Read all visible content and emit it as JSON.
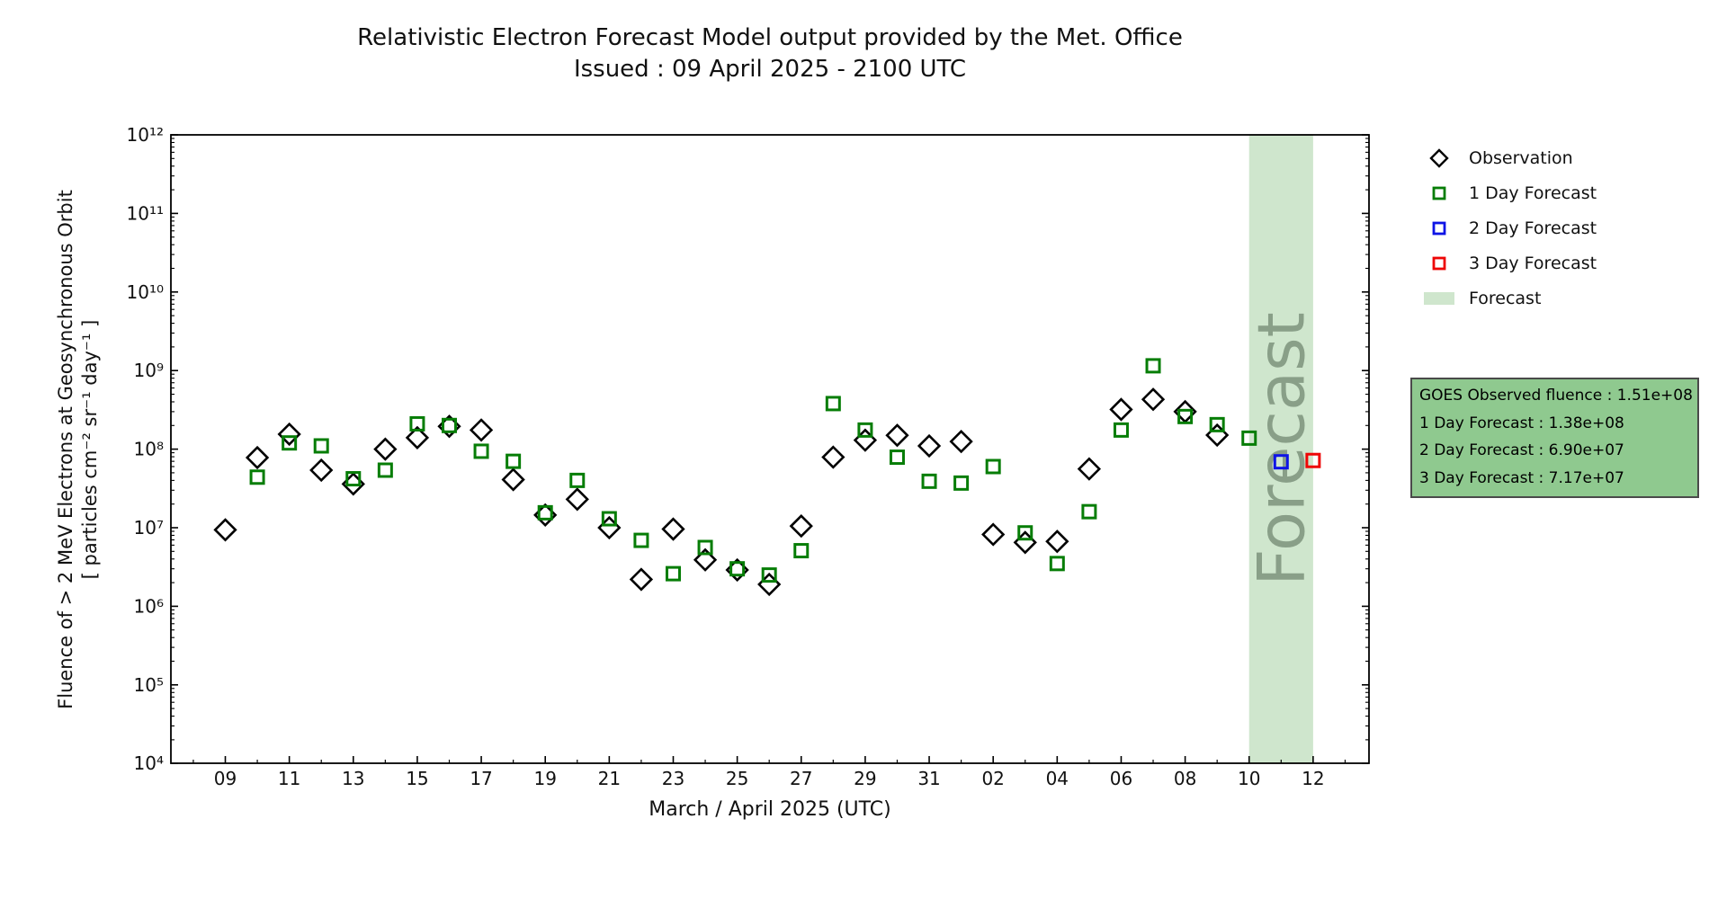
{
  "title": "Relativistic Electron Forecast Model output provided by the Met. Office",
  "subtitle": "Issued : 09 April 2025 - 2100 UTC",
  "axes": {
    "xlabel": "March / April 2025 (UTC)",
    "ylabel_line1": "Fluence of > 2 MeV Electrons at Geosynchronous Orbit",
    "ylabel_line2": "[ particles cm⁻² sr⁻¹ day⁻¹ ]",
    "x_major_ticks": [
      {
        "t": 9,
        "label": "09"
      },
      {
        "t": 11,
        "label": "11"
      },
      {
        "t": 13,
        "label": "13"
      },
      {
        "t": 15,
        "label": "15"
      },
      {
        "t": 17,
        "label": "17"
      },
      {
        "t": 19,
        "label": "19"
      },
      {
        "t": 21,
        "label": "21"
      },
      {
        "t": 23,
        "label": "23"
      },
      {
        "t": 25,
        "label": "25"
      },
      {
        "t": 27,
        "label": "27"
      },
      {
        "t": 29,
        "label": "29"
      },
      {
        "t": 31,
        "label": "31"
      },
      {
        "t": 33,
        "label": "02"
      },
      {
        "t": 35,
        "label": "04"
      },
      {
        "t": 37,
        "label": "06"
      },
      {
        "t": 39,
        "label": "08"
      },
      {
        "t": 41,
        "label": "10"
      },
      {
        "t": 43,
        "label": "12"
      }
    ],
    "y_ticks": [
      {
        "exp": 12,
        "label": "10¹²"
      },
      {
        "exp": 11,
        "label": "10¹¹"
      },
      {
        "exp": 10,
        "label": "10¹⁰"
      },
      {
        "exp": 9,
        "label": "10⁹"
      },
      {
        "exp": 8,
        "label": "10⁸"
      },
      {
        "exp": 7,
        "label": "10⁷"
      },
      {
        "exp": 6,
        "label": "10⁶"
      },
      {
        "exp": 5,
        "label": "10⁵"
      },
      {
        "exp": 4,
        "label": "10⁴"
      }
    ]
  },
  "legend": [
    {
      "label": "Observation",
      "marker": "diamond",
      "color": "#000000"
    },
    {
      "label": "1 Day Forecast",
      "marker": "square",
      "color": "#067d06"
    },
    {
      "label": "2 Day Forecast",
      "marker": "square",
      "color": "#0e14e6"
    },
    {
      "label": "3 Day Forecast",
      "marker": "square",
      "color": "#ee0505"
    },
    {
      "label": "Forecast",
      "marker": "patch",
      "color": "#cfe6cd"
    }
  ],
  "info_box": {
    "bg_color": "#8fc98f",
    "lines": [
      "GOES Observed fluence : 1.51e+08",
      "1 Day Forecast : 1.38e+08",
      "2 Day Forecast : 6.90e+07",
      "3 Day Forecast : 7.17e+07"
    ]
  },
  "chart_data": {
    "type": "scatter",
    "title": "Relativistic Electron Forecast Model output provided by the Met. Office",
    "xlabel": "March / April 2025 (UTC)",
    "ylabel": "Fluence of > 2 MeV Electrons at Geosynchronous Orbit [ particles cm-2 sr-1 day-1 ]",
    "y_scale": "log",
    "ylim": [
      10000.0,
      1000000000000.0
    ],
    "x_range_days": [
      "Mar 07",
      "Apr 14"
    ],
    "grid": false,
    "legend_position": "upper right, outside axes",
    "forecast_band": {
      "start": "Apr 10",
      "end": "Apr 12",
      "t_start": 41,
      "t_end": 43,
      "color": "#cfe6cd",
      "watermark": "Forecast"
    },
    "series": [
      {
        "name": "Observation",
        "marker": "diamond",
        "color": "#000000",
        "points": [
          {
            "d": "Mar 09",
            "t": 9,
            "v": 9400000.0
          },
          {
            "d": "Mar 10",
            "t": 10,
            "v": 78000000.0
          },
          {
            "d": "Mar 11",
            "t": 11,
            "v": 155000000.0
          },
          {
            "d": "Mar 12",
            "t": 12,
            "v": 54000000.0
          },
          {
            "d": "Mar 13",
            "t": 13,
            "v": 36000000.0
          },
          {
            "d": "Mar 14",
            "t": 14,
            "v": 100000000.0
          },
          {
            "d": "Mar 15",
            "t": 15,
            "v": 140000000.0
          },
          {
            "d": "Mar 16",
            "t": 16,
            "v": 195000000.0
          },
          {
            "d": "Mar 17",
            "t": 17,
            "v": 175000000.0
          },
          {
            "d": "Mar 18",
            "t": 18,
            "v": 41000000.0
          },
          {
            "d": "Mar 19",
            "t": 19,
            "v": 14500000.0
          },
          {
            "d": "Mar 20",
            "t": 20,
            "v": 23000000.0
          },
          {
            "d": "Mar 21",
            "t": 21,
            "v": 10000000.0
          },
          {
            "d": "Mar 22",
            "t": 22,
            "v": 2200000.0
          },
          {
            "d": "Mar 23",
            "t": 23,
            "v": 9600000.0
          },
          {
            "d": "Mar 24",
            "t": 24,
            "v": 3900000.0
          },
          {
            "d": "Mar 25",
            "t": 25,
            "v": 2900000.0
          },
          {
            "d": "Mar 26",
            "t": 26,
            "v": 1900000.0
          },
          {
            "d": "Mar 27",
            "t": 27,
            "v": 10500000.0
          },
          {
            "d": "Mar 28",
            "t": 28,
            "v": 79000000.0
          },
          {
            "d": "Mar 29",
            "t": 29,
            "v": 130000000.0
          },
          {
            "d": "Mar 30",
            "t": 30,
            "v": 150000000.0
          },
          {
            "d": "Mar 31",
            "t": 31,
            "v": 110000000.0
          },
          {
            "d": "Apr 01",
            "t": 32,
            "v": 125000000.0
          },
          {
            "d": "Apr 02",
            "t": 33,
            "v": 8200000.0
          },
          {
            "d": "Apr 03",
            "t": 34,
            "v": 6500000.0
          },
          {
            "d": "Apr 04",
            "t": 35,
            "v": 6700000.0
          },
          {
            "d": "Apr 05",
            "t": 36,
            "v": 56000000.0
          },
          {
            "d": "Apr 06",
            "t": 37,
            "v": 320000000.0
          },
          {
            "d": "Apr 07",
            "t": 38,
            "v": 430000000.0
          },
          {
            "d": "Apr 08",
            "t": 39,
            "v": 300000000.0
          },
          {
            "d": "Apr 09",
            "t": 40,
            "v": 151000000.0
          }
        ]
      },
      {
        "name": "1 Day Forecast",
        "marker": "square",
        "color": "#067d06",
        "points": [
          {
            "d": "Mar 10",
            "t": 10,
            "v": 44000000.0
          },
          {
            "d": "Mar 11",
            "t": 11,
            "v": 120000000.0
          },
          {
            "d": "Mar 12",
            "t": 12,
            "v": 110000000.0
          },
          {
            "d": "Mar 13",
            "t": 13,
            "v": 42000000.0
          },
          {
            "d": "Mar 14",
            "t": 14,
            "v": 54000000.0
          },
          {
            "d": "Mar 15",
            "t": 15,
            "v": 210000000.0
          },
          {
            "d": "Mar 16",
            "t": 16,
            "v": 200000000.0
          },
          {
            "d": "Mar 17",
            "t": 17,
            "v": 94000000.0
          },
          {
            "d": "Mar 18",
            "t": 18,
            "v": 70000000.0
          },
          {
            "d": "Mar 19",
            "t": 19,
            "v": 15500000.0
          },
          {
            "d": "Mar 20",
            "t": 20,
            "v": 40000000.0
          },
          {
            "d": "Mar 21",
            "t": 21,
            "v": 13000000.0
          },
          {
            "d": "Mar 22",
            "t": 22,
            "v": 6900000.0
          },
          {
            "d": "Mar 23",
            "t": 23,
            "v": 2600000.0
          },
          {
            "d": "Mar 24",
            "t": 24,
            "v": 5600000.0
          },
          {
            "d": "Mar 25",
            "t": 25,
            "v": 3000000.0
          },
          {
            "d": "Mar 26",
            "t": 26,
            "v": 2500000.0
          },
          {
            "d": "Mar 27",
            "t": 27,
            "v": 5100000.0
          },
          {
            "d": "Mar 28",
            "t": 28,
            "v": 380000000.0
          },
          {
            "d": "Mar 29",
            "t": 29,
            "v": 175000000.0
          },
          {
            "d": "Mar 30",
            "t": 30,
            "v": 79000000.0
          },
          {
            "d": "Mar 31",
            "t": 31,
            "v": 39000000.0
          },
          {
            "d": "Apr 01",
            "t": 32,
            "v": 37000000.0
          },
          {
            "d": "Apr 02",
            "t": 33,
            "v": 60000000.0
          },
          {
            "d": "Apr 03",
            "t": 34,
            "v": 8600000.0
          },
          {
            "d": "Apr 04",
            "t": 35,
            "v": 3500000.0
          },
          {
            "d": "Apr 05",
            "t": 36,
            "v": 16000000.0
          },
          {
            "d": "Apr 06",
            "t": 37,
            "v": 175000000.0
          },
          {
            "d": "Apr 07",
            "t": 38,
            "v": 1150000000.0
          },
          {
            "d": "Apr 08",
            "t": 39,
            "v": 260000000.0
          },
          {
            "d": "Apr 09",
            "t": 40,
            "v": 205000000.0
          },
          {
            "d": "Apr 10",
            "t": 41,
            "v": 138000000.0
          }
        ]
      },
      {
        "name": "2 Day Forecast",
        "marker": "square",
        "color": "#0e14e6",
        "points": [
          {
            "d": "Apr 11",
            "t": 42,
            "v": 69000000.0
          }
        ]
      },
      {
        "name": "3 Day Forecast",
        "marker": "square",
        "color": "#ee0505",
        "points": [
          {
            "d": "Apr 12",
            "t": 43,
            "v": 71700000.0
          }
        ]
      }
    ]
  }
}
